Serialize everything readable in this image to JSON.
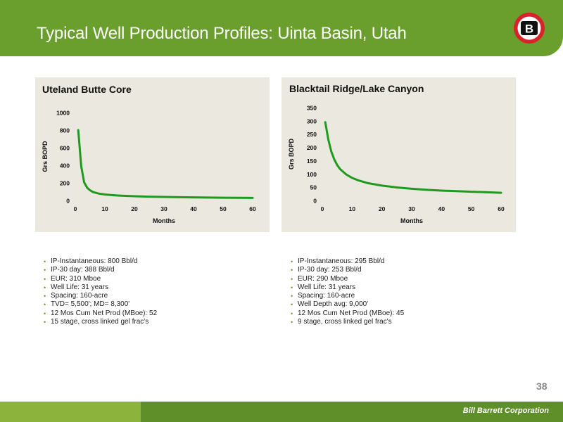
{
  "header": {
    "title": "Typical Well Production Profiles: Uinta Basin, Utah",
    "logo_letter": "B",
    "logo_colors": {
      "ring": "#d8232a",
      "inner": "#ffffff",
      "letter_bg": "#111111"
    }
  },
  "colors": {
    "header_green": "#6a9f2e",
    "footer_light": "#8cb43c",
    "footer_dark": "#5f8f29",
    "panel_bg": "#eae8df",
    "curve_green": "#1f9a1f"
  },
  "chart_data": [
    {
      "type": "line",
      "title": "Uteland Butte Core",
      "xlabel": "Months",
      "ylabel": "Grs BOPD",
      "xlim": [
        0,
        60
      ],
      "ylim": [
        0,
        1000
      ],
      "xticks": [
        "0",
        "10",
        "20",
        "30",
        "40",
        "50",
        "60"
      ],
      "yticks": [
        "0",
        "200",
        "400",
        "600",
        "800",
        "1000"
      ],
      "grid": false,
      "series": [
        {
          "x": [
            1,
            2,
            3,
            4,
            5,
            6,
            8,
            10,
            12,
            15,
            20,
            25,
            30,
            35,
            40,
            45,
            50,
            55,
            60
          ],
          "values": [
            800,
            390,
            205,
            145,
            115,
            95,
            78,
            68,
            62,
            55,
            48,
            43,
            40,
            37,
            35,
            33,
            31,
            30,
            29
          ]
        }
      ]
    },
    {
      "type": "line",
      "title": "Blacktail Ridge/Lake Canyon",
      "xlabel": "Months",
      "ylabel": "Grs BOPD",
      "xlim": [
        0,
        60
      ],
      "ylim": [
        0,
        350
      ],
      "xticks": [
        "0",
        "10",
        "20",
        "30",
        "40",
        "50",
        "60"
      ],
      "yticks": [
        "0",
        "50",
        "100",
        "150",
        "200",
        "250",
        "300",
        "350"
      ],
      "grid": false,
      "series": [
        {
          "x": [
            1,
            2,
            3,
            4,
            5,
            6,
            8,
            10,
            12,
            15,
            20,
            25,
            30,
            35,
            40,
            45,
            50,
            55,
            60
          ],
          "values": [
            295,
            230,
            185,
            155,
            133,
            118,
            98,
            85,
            76,
            66,
            56,
            49,
            44,
            40,
            37,
            35,
            33,
            31,
            29
          ]
        }
      ]
    }
  ],
  "bullets_left": [
    "IP-Instantaneous: 800 Bbl/d",
    "IP-30 day: 388 Bbl/d",
    "EUR: 310 Mboe",
    "Well Life: 31 years",
    "Spacing: 160-acre",
    "TVD= 5,500'; MD= 8,300'",
    "12 Mos Cum Net Prod (MBoe): 52",
    "15 stage, cross linked gel frac's"
  ],
  "bullets_right": [
    "IP-Instantaneous: 295 Bbl/d",
    "IP-30 day: 253 Bbl/d",
    "EUR: 290 Mboe",
    "Well Life: 31 years",
    "Spacing: 160-acre",
    "Well Depth avg: 9,000'",
    "12 Mos Cum Net Prod (MBoe): 45",
    "9 stage, cross linked gel frac's"
  ],
  "page_number": "38",
  "footer": {
    "brand": "Bill Barrett Corporation"
  }
}
